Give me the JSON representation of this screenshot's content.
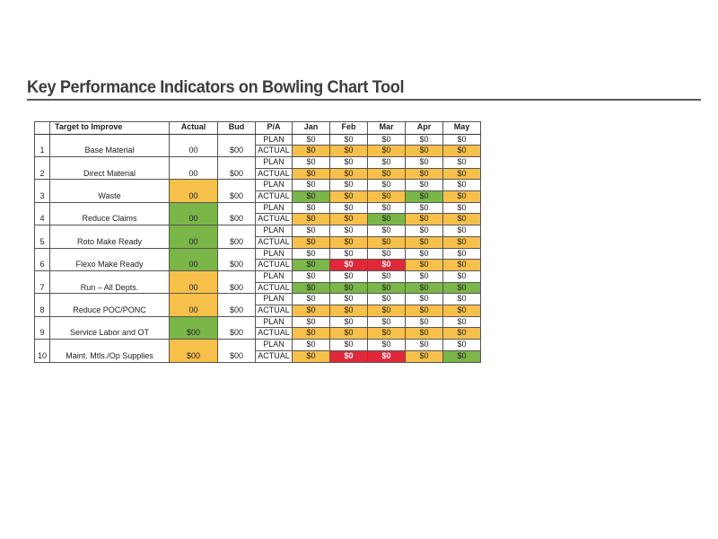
{
  "title": "Key Performance Indicators on Bowling Chart Tool",
  "colors": {
    "orange": "#f7c04a",
    "green": "#7ab648",
    "red": "#e0283a",
    "white": "#ffffff"
  },
  "table": {
    "headers": {
      "num": "",
      "target": "Target to Improve",
      "actual": "Actual",
      "bud": "Bud",
      "pa": "P/A",
      "months": [
        "Jan",
        "Feb",
        "Mar",
        "Apr",
        "May"
      ]
    },
    "plan_label": "PLAN",
    "actual_label": "ACTUAL",
    "rows": [
      {
        "num": "1",
        "target": "Base Material",
        "actual": "00",
        "actual_color": "white",
        "bud": "$00",
        "plan": [
          "$0",
          "$0",
          "$0",
          "$0",
          "$0"
        ],
        "actuals": [
          "$0",
          "$0",
          "$0",
          "$0",
          "$0"
        ],
        "actual_colors": [
          "orange",
          "orange",
          "orange",
          "orange",
          "orange"
        ]
      },
      {
        "num": "2",
        "target": "Direct Material",
        "actual": "00",
        "actual_color": "white",
        "bud": "$00",
        "plan": [
          "$0",
          "$0",
          "$0",
          "$0",
          "$0"
        ],
        "actuals": [
          "$0",
          "$0",
          "$0",
          "$0",
          "$0"
        ],
        "actual_colors": [
          "orange",
          "orange",
          "orange",
          "orange",
          "orange"
        ]
      },
      {
        "num": "3",
        "target": "Waste",
        "actual": "00",
        "actual_color": "orange",
        "bud": "$00",
        "plan": [
          "$0",
          "$0",
          "$0",
          "$0",
          "$0"
        ],
        "actuals": [
          "$0",
          "$0",
          "$0",
          "$0",
          "$0"
        ],
        "actual_colors": [
          "green",
          "orange",
          "orange",
          "green",
          "orange"
        ]
      },
      {
        "num": "4",
        "target": "Reduce Claims",
        "actual": "00",
        "actual_color": "green",
        "bud": "$00",
        "plan": [
          "$0",
          "$0",
          "$0",
          "$0",
          "$0"
        ],
        "actuals": [
          "$0",
          "$0",
          "$0",
          "$0",
          "$0"
        ],
        "actual_colors": [
          "orange",
          "orange",
          "green",
          "orange",
          "orange"
        ]
      },
      {
        "num": "5",
        "target": "Roto Make Ready",
        "actual": "00",
        "actual_color": "green",
        "bud": "$00",
        "plan": [
          "$0",
          "$0",
          "$0",
          "$0",
          "$0"
        ],
        "actuals": [
          "$0",
          "$0",
          "$0",
          "$0",
          "$0"
        ],
        "actual_colors": [
          "orange",
          "orange",
          "orange",
          "orange",
          "orange"
        ]
      },
      {
        "num": "6",
        "target": "Flexo Make Ready",
        "actual": "00",
        "actual_color": "green",
        "bud": "$00",
        "plan": [
          "$0",
          "$0",
          "$0",
          "$0",
          "$0"
        ],
        "actuals": [
          "$0",
          "$0",
          "$0",
          "$0",
          "$0"
        ],
        "actual_colors": [
          "green",
          "red",
          "red",
          "orange",
          "orange"
        ]
      },
      {
        "num": "7",
        "target": "Run – All Depts.",
        "actual": "00",
        "actual_color": "orange",
        "bud": "$00",
        "plan": [
          "$0",
          "$0",
          "$0",
          "$0",
          "$0"
        ],
        "actuals": [
          "$0",
          "$0",
          "$0",
          "$0",
          "$0"
        ],
        "actual_colors": [
          "green",
          "green",
          "green",
          "green",
          "green"
        ]
      },
      {
        "num": "8",
        "target": "Reduce POC/PONC",
        "actual": "00",
        "actual_color": "orange",
        "bud": "$00",
        "plan": [
          "$0",
          "$0",
          "$0",
          "$0",
          "$0"
        ],
        "actuals": [
          "$0",
          "$0",
          "$0",
          "$0",
          "$0"
        ],
        "actual_colors": [
          "orange",
          "orange",
          "orange",
          "orange",
          "orange"
        ]
      },
      {
        "num": "9",
        "target": "Service Labor and OT",
        "actual": "$00",
        "actual_color": "green",
        "bud": "$00",
        "plan": [
          "$0",
          "$0",
          "$0",
          "$0",
          "$0"
        ],
        "actuals": [
          "$0",
          "$0",
          "$0",
          "$0",
          "$0"
        ],
        "actual_colors": [
          "orange",
          "orange",
          "orange",
          "orange",
          "orange"
        ]
      },
      {
        "num": "10",
        "target": "Maint. Mtls./Op Supplies",
        "actual": "$00",
        "actual_color": "orange",
        "bud": "$00",
        "plan": [
          "$0",
          "$0",
          "$0",
          "$0",
          "$0"
        ],
        "actuals": [
          "$0",
          "$0",
          "$0",
          "$0",
          "$0"
        ],
        "actual_colors": [
          "orange",
          "red",
          "red",
          "orange",
          "green"
        ]
      }
    ]
  }
}
